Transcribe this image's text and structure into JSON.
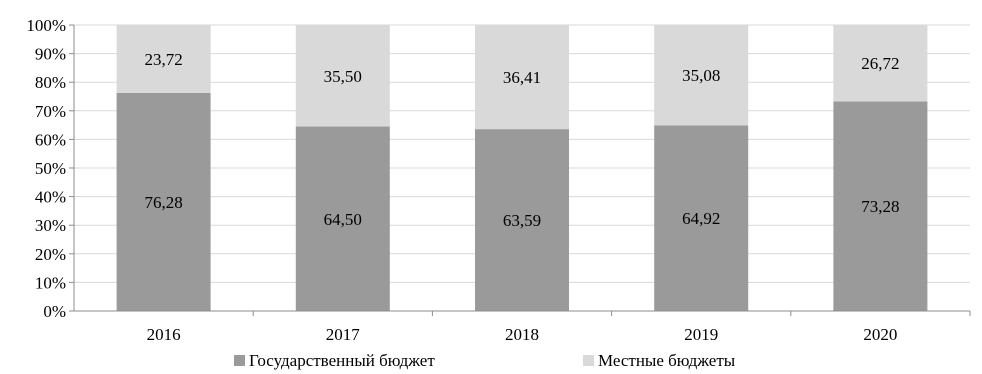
{
  "chart_data": {
    "type": "bar",
    "stacked": "percent",
    "categories": [
      "2016",
      "2017",
      "2018",
      "2019",
      "2020"
    ],
    "series": [
      {
        "name": "Государственный бюджет",
        "values": [
          76.28,
          64.5,
          63.59,
          64.92,
          73.28
        ],
        "labels": [
          "76,28",
          "64,50",
          "63,59",
          "64,92",
          "73,28"
        ],
        "color": "#9a9a9a"
      },
      {
        "name": "Местные бюджеты",
        "values": [
          23.72,
          35.5,
          36.41,
          35.08,
          26.72
        ],
        "labels": [
          "23,72",
          "35,50",
          "36,41",
          "35,08",
          "26,72"
        ],
        "color": "#d9d9d9"
      }
    ],
    "y_ticks": [
      "0%",
      "10%",
      "20%",
      "30%",
      "40%",
      "50%",
      "60%",
      "70%",
      "80%",
      "90%",
      "100%"
    ],
    "ylim": [
      0,
      100
    ],
    "grid": true,
    "legend_position": "bottom"
  }
}
